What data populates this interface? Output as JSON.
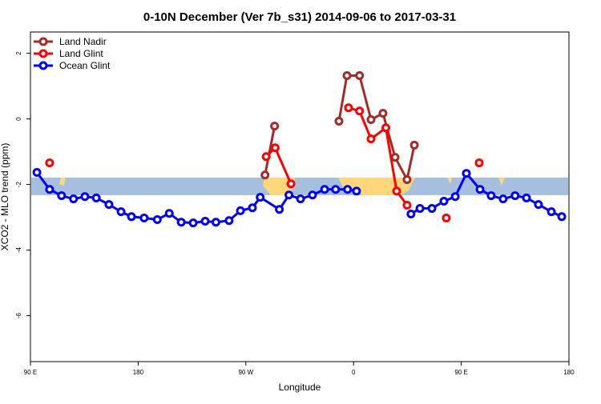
{
  "chart_data": {
    "type": "line",
    "title": "0-10N December (Ver 7b_s31)   2014-09-06 to 2017-03-31",
    "x_label": "Longitude",
    "y_label": "XCO2 - MLO trend (ppm)",
    "xlim": [
      90,
      540
    ],
    "ylim": [
      -7.4,
      2.65
    ],
    "xticks": [
      {
        "value": 90,
        "label": "90 E"
      },
      {
        "value": 180,
        "label": "180"
      },
      {
        "value": 270,
        "label": "90 W"
      },
      {
        "value": 360,
        "label": "0"
      },
      {
        "value": 450,
        "label": "90 E"
      },
      {
        "value": 540,
        "label": "180"
      }
    ],
    "yticks": [
      2,
      0,
      -2,
      -4,
      -6
    ],
    "legend": "top-left",
    "series": [
      {
        "name": "Land Nadir",
        "color": "#a52a2a",
        "x": [
          286,
          294,
          null,
          347.8,
          354.5,
          365,
          374.6,
          384.6,
          394.7,
          404.7,
          410.8
        ],
        "values": [
          -1.71,
          -0.22,
          null,
          -0.07,
          1.32,
          1.32,
          -0.02,
          0.17,
          -1.17,
          -1.85,
          -0.8
        ]
      },
      {
        "name": "Land Glint",
        "color": "#ff0000",
        "x": [
          106,
          null,
          287,
          294.5,
          307.7,
          null,
          355.8,
          365,
          374.6,
          387,
          396,
          404.7,
          null,
          437.5,
          null,
          465
        ],
        "values": [
          -1.34,
          null,
          -1.15,
          -0.88,
          -1.98,
          null,
          0.34,
          0.24,
          -0.61,
          -0.27,
          -2.2,
          -2.63,
          null,
          -3.02,
          null,
          -1.34
        ]
      },
      {
        "name": "Ocean Glint",
        "color": "#0000ff",
        "x": [
          95.4,
          106,
          116,
          126,
          135.5,
          145,
          155.6,
          165.7,
          174.4,
          185,
          196,
          206,
          216,
          226,
          236,
          245,
          256,
          265.5,
          275.5,
          282,
          298,
          306,
          315.7,
          325.7,
          335.8,
          345,
          355,
          362.5,
          null,
          408,
          415.5,
          425.5,
          435.5,
          445,
          454.3,
          465.7,
          475,
          485,
          495,
          504.5,
          514.5,
          525.3,
          534
        ],
        "values": [
          -1.63,
          -2.15,
          -2.34,
          -2.44,
          -2.37,
          -2.41,
          -2.61,
          -2.83,
          -2.98,
          -3.02,
          -3.07,
          -2.88,
          -3.15,
          -3.17,
          -3.12,
          -3.15,
          -3.1,
          -2.8,
          -2.71,
          -2.39,
          -2.76,
          -2.32,
          -2.44,
          -2.32,
          -2.15,
          -2.15,
          -2.15,
          -2.2,
          null,
          -2.9,
          -2.73,
          -2.73,
          -2.51,
          -2.37,
          -1.66,
          -2.15,
          -2.34,
          -2.44,
          -2.34,
          -2.41,
          -2.61,
          -2.83,
          -2.98
        ]
      }
    ]
  }
}
